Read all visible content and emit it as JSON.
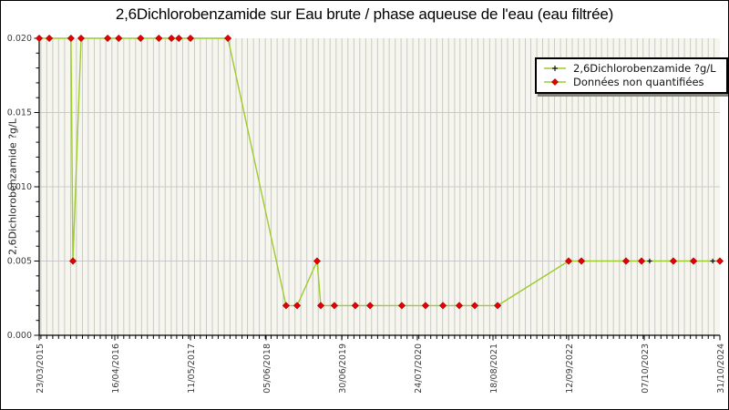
{
  "chart": {
    "title": "2,6Dichlorobenzamide sur Eau brute / phase aqueuse de l'eau (eau filtrée)",
    "y_axis_label": "2,6Dichlorobenzamide ?g/L",
    "legend": [
      {
        "label": "2,6Dichlorobenzamide ?g/L",
        "marker": "plus"
      },
      {
        "label": "Données non quantifiées",
        "marker": "diamond"
      }
    ]
  },
  "chart_data": {
    "type": "line",
    "title": "2,6Dichlorobenzamide sur Eau brute / phase aqueuse de l'eau (eau filtrée)",
    "xlabel": "",
    "ylabel": "2,6Dichlorobenzamide ?g/L",
    "ylim": [
      0,
      0.02
    ],
    "x_range": [
      "2015-03-23",
      "2024-10-31"
    ],
    "grid": {
      "x_minor": "monthly vertical lines",
      "y_major": "horizontal lines at labeled ticks"
    },
    "legend_position": "top-right inside plot",
    "x_ticks": [
      {
        "label": "23/03/2015",
        "date": "2015-03-23"
      },
      {
        "label": "16/04/2016",
        "date": "2016-04-16"
      },
      {
        "label": "11/05/2017",
        "date": "2017-05-11"
      },
      {
        "label": "05/06/2018",
        "date": "2018-06-05"
      },
      {
        "label": "30/06/2019",
        "date": "2019-06-30"
      },
      {
        "label": "24/07/2020",
        "date": "2020-07-24"
      },
      {
        "label": "18/08/2021",
        "date": "2021-08-18"
      },
      {
        "label": "12/09/2022",
        "date": "2022-09-12"
      },
      {
        "label": "07/10/2023",
        "date": "2023-10-07"
      },
      {
        "label": "31/10/2024",
        "date": "2024-10-31"
      }
    ],
    "y_ticks": [
      {
        "label": "0.000",
        "value": 0
      },
      {
        "label": "0.005",
        "value": 0.005
      },
      {
        "label": "0.010",
        "value": 0.01
      },
      {
        "label": "0.015",
        "value": 0.015
      },
      {
        "label": "0.020",
        "value": 0.02
      }
    ],
    "y_minor_step": 0.001,
    "series": [
      {
        "name": "2,6Dichlorobenzamide ?g/L",
        "marker": "plus",
        "note": "quantified points"
      },
      {
        "name": "Données non quantifiées",
        "marker": "diamond",
        "note": "unquantified points drawn on same line"
      }
    ],
    "points": [
      {
        "date": "2015-03-23",
        "value": 0.02,
        "quantified": false
      },
      {
        "date": "2015-05-14",
        "value": 0.02,
        "quantified": false
      },
      {
        "date": "2015-09-03",
        "value": 0.02,
        "quantified": false
      },
      {
        "date": "2015-09-13",
        "value": 0.005,
        "quantified": false
      },
      {
        "date": "2015-10-25",
        "value": 0.02,
        "quantified": false
      },
      {
        "date": "2016-03-10",
        "value": 0.02,
        "quantified": false
      },
      {
        "date": "2016-05-06",
        "value": 0.02,
        "quantified": false
      },
      {
        "date": "2016-08-27",
        "value": 0.02,
        "quantified": false
      },
      {
        "date": "2016-11-29",
        "value": 0.02,
        "quantified": false
      },
      {
        "date": "2017-02-02",
        "value": 0.02,
        "quantified": false
      },
      {
        "date": "2017-03-12",
        "value": 0.02,
        "quantified": false
      },
      {
        "date": "2017-05-11",
        "value": 0.02,
        "quantified": false
      },
      {
        "date": "2017-11-20",
        "value": 0.02,
        "quantified": false
      },
      {
        "date": "2018-09-16",
        "value": 0.002,
        "quantified": false
      },
      {
        "date": "2018-11-12",
        "value": 0.002,
        "quantified": false
      },
      {
        "date": "2019-02-23",
        "value": 0.005,
        "quantified": false
      },
      {
        "date": "2019-03-14",
        "value": 0.002,
        "quantified": false
      },
      {
        "date": "2019-05-23",
        "value": 0.002,
        "quantified": false
      },
      {
        "date": "2019-09-08",
        "value": 0.002,
        "quantified": false
      },
      {
        "date": "2019-11-23",
        "value": 0.002,
        "quantified": false
      },
      {
        "date": "2020-05-05",
        "value": 0.002,
        "quantified": false
      },
      {
        "date": "2020-09-04",
        "value": 0.002,
        "quantified": false
      },
      {
        "date": "2020-12-03",
        "value": 0.002,
        "quantified": false
      },
      {
        "date": "2021-02-25",
        "value": 0.002,
        "quantified": false
      },
      {
        "date": "2021-05-16",
        "value": 0.002,
        "quantified": false
      },
      {
        "date": "2021-09-11",
        "value": 0.002,
        "quantified": false
      },
      {
        "date": "2022-09-12",
        "value": 0.005,
        "quantified": false
      },
      {
        "date": "2022-11-17",
        "value": 0.005,
        "quantified": false
      },
      {
        "date": "2023-07-05",
        "value": 0.005,
        "quantified": false
      },
      {
        "date": "2023-09-23",
        "value": 0.005,
        "quantified": false
      },
      {
        "date": "2023-11-04",
        "value": 0.005,
        "quantified": true
      },
      {
        "date": "2024-03-05",
        "value": 0.005,
        "quantified": false
      },
      {
        "date": "2024-06-17",
        "value": 0.005,
        "quantified": false
      },
      {
        "date": "2024-09-24",
        "value": 0.005,
        "quantified": true
      },
      {
        "date": "2024-10-31",
        "value": 0.005,
        "quantified": false
      }
    ],
    "colors": {
      "line": "#9ecb2d",
      "marker_unquantified": "#e60000",
      "marker_unquantified_edge": "#a00000",
      "marker_quantified": "#000000",
      "plot_bg": "#f6f6ee",
      "grid": "#c9c9c9",
      "axis": "#000000",
      "tick_label": "#3c3c3c"
    }
  }
}
